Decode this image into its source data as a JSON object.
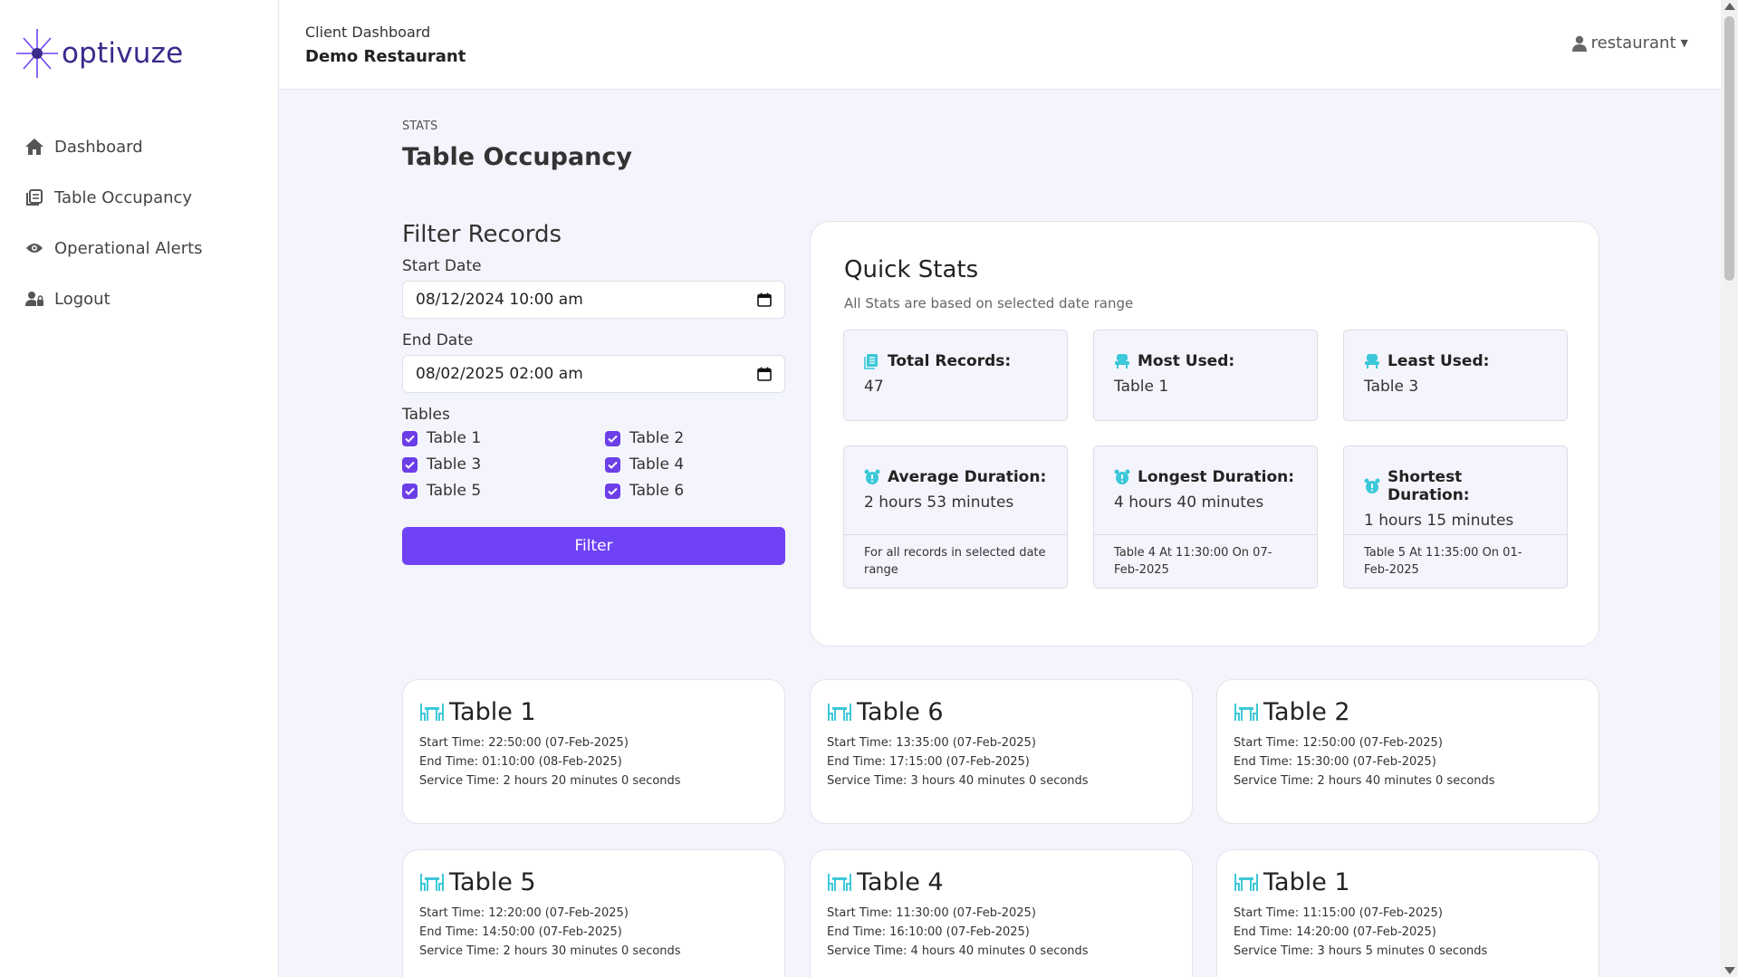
{
  "brand": {
    "name": "optivuze",
    "color": "#3a2a8c",
    "accent": "#6f42f5"
  },
  "sidebar": {
    "items": [
      {
        "label": "Dashboard",
        "icon": "home-icon"
      },
      {
        "label": "Table Occupancy",
        "icon": "table-list-icon"
      },
      {
        "label": "Operational Alerts",
        "icon": "eye-icon"
      },
      {
        "label": "Logout",
        "icon": "user-lock-icon"
      }
    ]
  },
  "header": {
    "subtitle": "Client Dashboard",
    "title": "Demo Restaurant",
    "user": "restaurant"
  },
  "page": {
    "breadcrumb": "STATS",
    "title": "Table Occupancy"
  },
  "filter": {
    "heading": "Filter Records",
    "start_label": "Start Date",
    "start_value": "08/12/2024 10:00 am",
    "end_label": "End Date",
    "end_value": "08/02/2025 02:00 am",
    "tables_label": "Tables",
    "tables": [
      {
        "label": "Table 1",
        "checked": true
      },
      {
        "label": "Table 2",
        "checked": true
      },
      {
        "label": "Table 3",
        "checked": true
      },
      {
        "label": "Table 4",
        "checked": true
      },
      {
        "label": "Table 5",
        "checked": true
      },
      {
        "label": "Table 6",
        "checked": true
      }
    ],
    "button": "Filter"
  },
  "quick_stats": {
    "heading": "Quick Stats",
    "subtitle": "All Stats are based on selected date range",
    "cards": [
      {
        "label": "Total Records:",
        "value": "47",
        "footer": "",
        "icon": "list-icon"
      },
      {
        "label": "Most Used:",
        "value": "Table 1",
        "footer": "",
        "icon": "chair-icon"
      },
      {
        "label": "Least Used:",
        "value": "Table 3",
        "footer": "",
        "icon": "chair-icon"
      },
      {
        "label": "Average Duration:",
        "value": "2 hours 53 minutes",
        "footer": "For all records in selected date range",
        "icon": "alarm-icon"
      },
      {
        "label": "Longest Duration:",
        "value": "4 hours 40 minutes",
        "footer": "Table 4 At 11:30:00 On 07-Feb-2025",
        "icon": "alarm-icon"
      },
      {
        "label": "Shortest Duration:",
        "value": "1 hours 15 minutes",
        "footer": "Table 5 At 11:35:00 On 01-Feb-2025",
        "icon": "alarm-icon"
      }
    ]
  },
  "records": [
    {
      "table": "Table 1",
      "start": "Start Time: 22:50:00 (07-Feb-2025)",
      "end": "End Time: 01:10:00 (08-Feb-2025)",
      "service": "Service Time: 2 hours 20 minutes 0 seconds"
    },
    {
      "table": "Table 6",
      "start": "Start Time: 13:35:00 (07-Feb-2025)",
      "end": "End Time: 17:15:00 (07-Feb-2025)",
      "service": "Service Time: 3 hours 40 minutes 0 seconds"
    },
    {
      "table": "Table 2",
      "start": "Start Time: 12:50:00 (07-Feb-2025)",
      "end": "End Time: 15:30:00 (07-Feb-2025)",
      "service": "Service Time: 2 hours 40 minutes 0 seconds"
    },
    {
      "table": "Table 5",
      "start": "Start Time: 12:20:00 (07-Feb-2025)",
      "end": "End Time: 14:50:00 (07-Feb-2025)",
      "service": "Service Time: 2 hours 30 minutes 0 seconds"
    },
    {
      "table": "Table 4",
      "start": "Start Time: 11:30:00 (07-Feb-2025)",
      "end": "End Time: 16:10:00 (07-Feb-2025)",
      "service": "Service Time: 4 hours 40 minutes 0 seconds"
    },
    {
      "table": "Table 1",
      "start": "Start Time: 11:15:00 (07-Feb-2025)",
      "end": "End Time: 14:20:00 (07-Feb-2025)",
      "service": "Service Time: 3 hours 5 minutes 0 seconds"
    }
  ]
}
